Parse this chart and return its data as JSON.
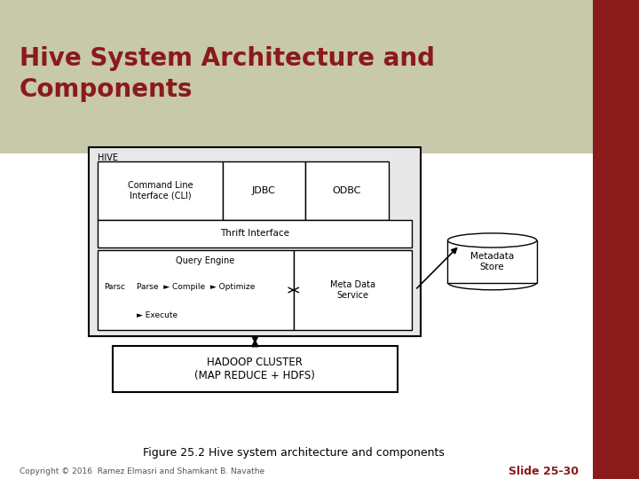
{
  "title": "Hive System Architecture and\nComponents",
  "title_color": "#8B1A1A",
  "title_fontsize": 20,
  "header_bg": "#C8C8AA",
  "main_bg": "#FFFFFF",
  "figure_caption": "Figure 25.2 Hive system architecture and components",
  "copyright_text": "Copyright © 2016  Ramez Elmasri and Shamkant B. Navathe",
  "slide_number": "Slide 25-30",
  "slide_number_color": "#8B1A1A",
  "right_bar_color": "#8B1A1A",
  "hive_box_label": "HIVE",
  "cli_label": "Command Line\nInterface (CLI)",
  "jdbc_label": "JDBC",
  "odbc_label": "ODBC",
  "thrift_label": "Thrift Interface",
  "qe_label": "Query Engine",
  "parse_line": "Parse  ► Compile  ► Optimize",
  "execute_label": "► Execute",
  "meta_data_service_label": "Meta Data\nService",
  "metadata_store_label": "Metadata\nStore",
  "hadoop_label": "HADOOP CLUSTER\n(MAP REDUCE + HDFS)"
}
